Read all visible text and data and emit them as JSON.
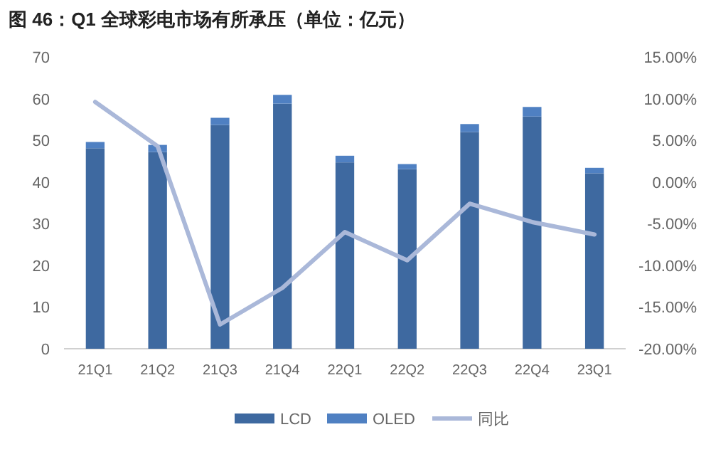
{
  "chart_data": {
    "type": "bar",
    "title": "图 46：Q1 全球彩电市场有所承压（单位：亿元）",
    "stacked": true,
    "legend": "bottom",
    "categories": [
      "21Q1",
      "21Q2",
      "21Q3",
      "21Q4",
      "22Q1",
      "22Q2",
      "22Q3",
      "22Q4",
      "23Q1"
    ],
    "series": [
      {
        "name": "LCD",
        "color": "#3e69a0",
        "values": [
          48.1,
          47.2,
          53.7,
          58.8,
          44.7,
          43.1,
          52.0,
          55.7,
          42.1
        ]
      },
      {
        "name": "OLED",
        "color": "#4f80c2",
        "values": [
          1.5,
          1.7,
          1.7,
          2.1,
          1.6,
          1.2,
          1.9,
          2.3,
          1.3
        ]
      },
      {
        "name": "同比",
        "type": "line",
        "axis": "y2",
        "color": "#aab8d9",
        "values": [
          9.6,
          4.3,
          -17.1,
          -12.7,
          -6.0,
          -9.4,
          -2.6,
          -4.8,
          -6.3
        ]
      }
    ],
    "ylim": [
      0,
      70
    ],
    "yticks": [
      0,
      10,
      20,
      30,
      40,
      50,
      60,
      70
    ],
    "y2lim": [
      -20,
      15
    ],
    "y2ticks": [
      {
        "value": 15,
        "label": "15.00%"
      },
      {
        "value": 10,
        "label": "10.00%"
      },
      {
        "value": 5,
        "label": "5.00%"
      },
      {
        "value": 0,
        "label": "0.00%"
      },
      {
        "value": -5,
        "label": "-5.00%"
      },
      {
        "value": -10,
        "label": "-10.00%"
      },
      {
        "value": -15,
        "label": "-15.00%"
      },
      {
        "value": -20,
        "label": "-20.00%"
      }
    ]
  }
}
